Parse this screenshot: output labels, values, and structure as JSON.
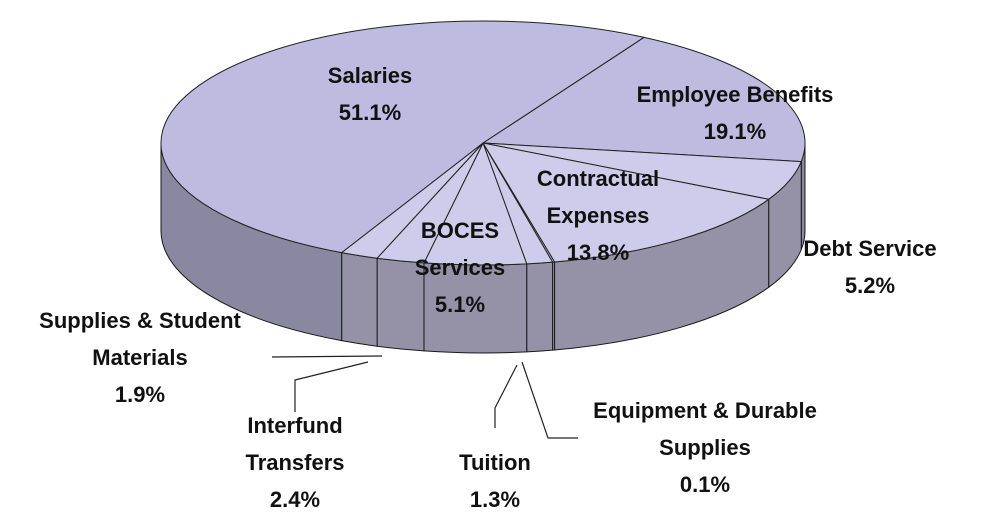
{
  "chart_data": {
    "type": "pie",
    "pie_3d": true,
    "start_angle": 30,
    "categories": [
      "Employee Benefits",
      "Debt Service",
      "Contractual Expenses",
      "Equipment & Durable Supplies",
      "Tuition",
      "BOCES Services",
      "Interfund Transfers",
      "Supplies & Student Materials",
      "Salaries"
    ],
    "values": [
      19.1,
      5.2,
      13.8,
      0.1,
      1.3,
      5.1,
      2.4,
      1.9,
      51.1
    ],
    "value_labels": [
      "19.1%",
      "5.2%",
      "13.8%",
      "0.1%",
      "1.3%",
      "5.1%",
      "2.4%",
      "1.9%",
      "51.1%"
    ],
    "colors": [
      "#bfbbe0",
      "#cfcbea",
      "#cfcbea",
      "#cfcbea",
      "#cfcbea",
      "#cfcbea",
      "#cfcbea",
      "#cfcbea",
      "#bfbbe0"
    ]
  }
}
